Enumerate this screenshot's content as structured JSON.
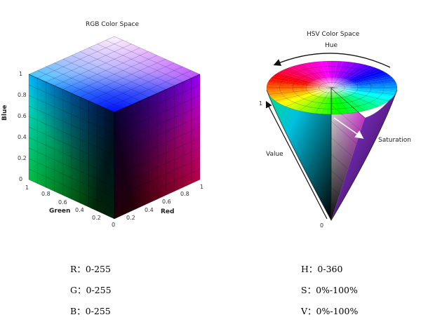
{
  "rgb": {
    "title": "RGB Color Space",
    "blue_axis": {
      "label": "Blue",
      "ticks": [
        "1",
        "0.8",
        "0.6",
        "0.4",
        "0.2",
        "0"
      ]
    },
    "green_axis": {
      "label": "Green",
      "ticks": [
        "1",
        "0.8",
        "0.6",
        "0.4",
        "0.2"
      ]
    },
    "red_axis": {
      "label": "Red",
      "ticks": [
        "0",
        "0.2",
        "0.4",
        "0.6",
        "0.8",
        "1"
      ]
    }
  },
  "hsv": {
    "title": "HSV Color Space",
    "hue_label": "Hue",
    "saturation_label": "Saturation",
    "value_label": "Value",
    "value_top": "1",
    "value_bottom": "0"
  },
  "ranges": {
    "r": "R：0-255",
    "g": "G：0-255",
    "b": "B：0-255",
    "h": "H：0-360",
    "s": "S：0%-100%",
    "v": "V：0%-100%"
  },
  "colors": {
    "black": "#000000",
    "white": "#ffffff",
    "red": "#ff0000",
    "green": "#00ff00",
    "blue": "#0000ff",
    "cyan": "#00ffff",
    "magenta": "#ff00ff",
    "yellow": "#ffff00"
  }
}
